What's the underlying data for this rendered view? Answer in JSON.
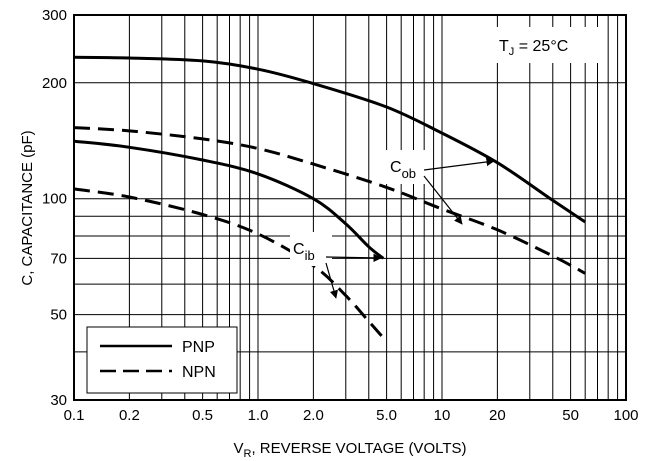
{
  "chart_data": {
    "type": "line",
    "x_scale": "log",
    "y_scale": "log",
    "xlim": [
      0.1,
      100
    ],
    "ylim": [
      30,
      300
    ],
    "x_ticks": [
      {
        "v": 0.1,
        "label": "0.1"
      },
      {
        "v": 0.2,
        "label": "0.2"
      },
      {
        "v": 0.5,
        "label": "0.5"
      },
      {
        "v": 1,
        "label": "1.0"
      },
      {
        "v": 2,
        "label": "2.0"
      },
      {
        "v": 5,
        "label": "5.0"
      },
      {
        "v": 10,
        "label": "10"
      },
      {
        "v": 20,
        "label": "20"
      },
      {
        "v": 50,
        "label": "50"
      },
      {
        "v": 100,
        "label": "100"
      }
    ],
    "y_ticks": [
      {
        "v": 30,
        "label": "30"
      },
      {
        "v": 50,
        "label": "50"
      },
      {
        "v": 70,
        "label": "70"
      },
      {
        "v": 100,
        "label": "100"
      },
      {
        "v": 200,
        "label": "200"
      },
      {
        "v": 300,
        "label": "300"
      }
    ],
    "xlabel": {
      "main": "V",
      "sub": "R",
      "rest": ", REVERSE VOLTAGE (VOLTS)"
    },
    "ylabel": "C, CAPACITANCE (pF)",
    "grid": true,
    "series": [
      {
        "id": "cob-pnp",
        "style": "solid",
        "x": [
          0.1,
          0.2,
          0.5,
          1,
          2,
          5,
          10,
          20,
          40,
          60
        ],
        "y": [
          233,
          232,
          228,
          217,
          199,
          173,
          148,
          124,
          99,
          87
        ]
      },
      {
        "id": "cob-npn",
        "style": "dashed",
        "x": [
          0.1,
          0.2,
          0.5,
          1,
          2,
          5,
          10,
          20,
          40,
          60
        ],
        "y": [
          153,
          150,
          143,
          135,
          123,
          107,
          94,
          83,
          71,
          64
        ]
      },
      {
        "id": "cib-pnp",
        "style": "solid",
        "x": [
          0.1,
          0.2,
          0.5,
          1,
          2,
          3,
          4,
          4.8
        ],
        "y": [
          141,
          136,
          126,
          116,
          100,
          86,
          75,
          70
        ]
      },
      {
        "id": "cib-npn",
        "style": "dashed",
        "x": [
          0.1,
          0.2,
          0.5,
          1,
          2,
          3,
          4,
          4.7
        ],
        "y": [
          106,
          101,
          91,
          81,
          67,
          56,
          48,
          44
        ]
      }
    ],
    "annotations": {
      "tj": {
        "main": "T",
        "sub": "J",
        "rest": " = 25°C"
      },
      "cob": {
        "main": "C",
        "sub": "ob"
      },
      "cib": {
        "main": "C",
        "sub": "ib"
      }
    },
    "legend": {
      "placement": "bottom-left",
      "items": [
        {
          "label": "PNP",
          "style": "solid"
        },
        {
          "label": "NPN",
          "style": "dashed"
        }
      ]
    }
  }
}
